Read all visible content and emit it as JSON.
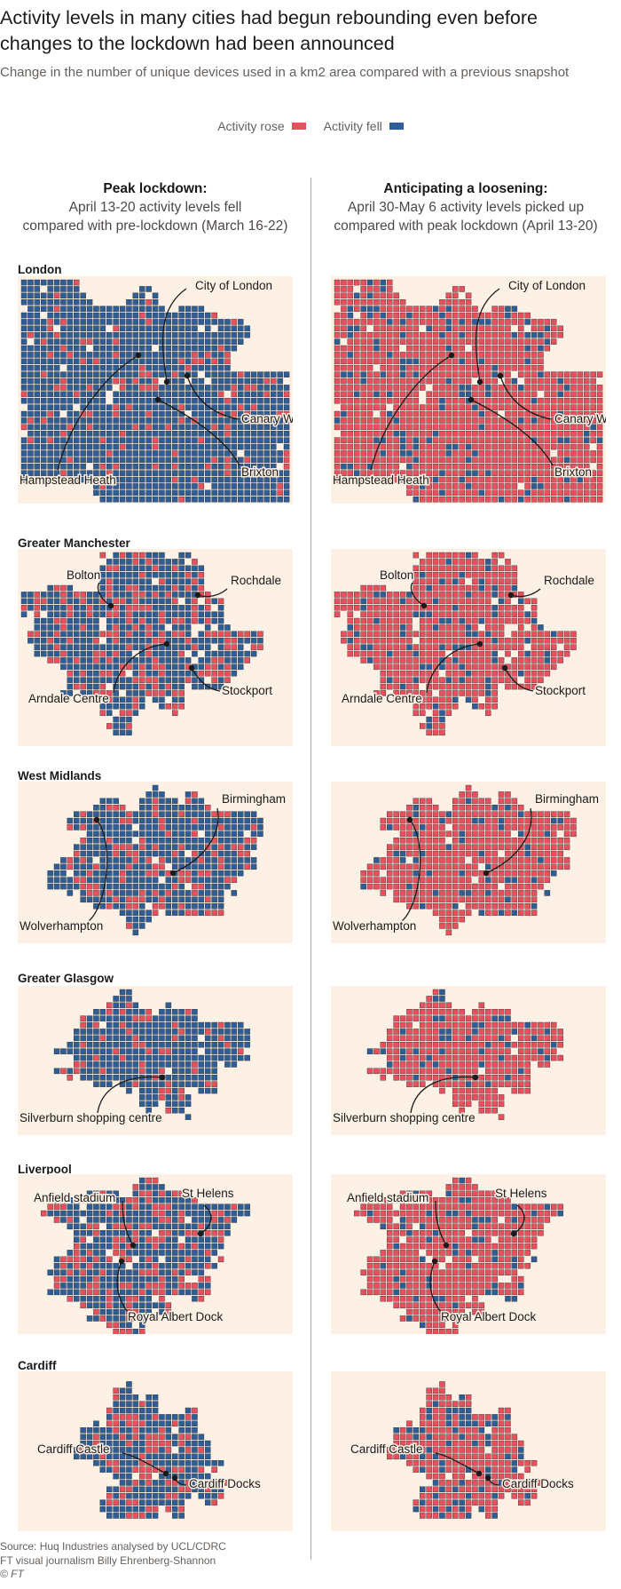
{
  "header": {
    "title": "Activity levels in many cities had begun rebounding even before changes to the lockdown had been announced",
    "subtitle": "Change in the number of unique devices used in a km2 area compared with a previous snapshot"
  },
  "legend": {
    "rose_label": "Activity rose",
    "fell_label": "Activity fell",
    "rose_color": "#e9505d",
    "fell_color": "#2f5d95"
  },
  "columns": [
    {
      "heading": "Peak lockdown:",
      "line1": "April 13-20 activity levels fell",
      "line2": "compared with pre-lockdown (March 16-22)"
    },
    {
      "heading": "Anticipating a loosening:",
      "line1": "April 30-May 6 activity levels picked up",
      "line2": "compared with peak lockdown (April 13-20)"
    }
  ],
  "cities": [
    {
      "name": "London",
      "share_rose": [
        0.1,
        0.87
      ],
      "annotations": [
        "City of London",
        "Canary Wharf",
        "Brixton",
        "Hampstead Heath"
      ]
    },
    {
      "name": "Greater Manchester",
      "share_rose": [
        0.32,
        0.85
      ],
      "annotations": [
        "Bolton",
        "Rochdale",
        "Stockport",
        "Arndale Centre"
      ]
    },
    {
      "name": "West Midlands",
      "share_rose": [
        0.22,
        0.86
      ],
      "annotations": [
        "Birmingham",
        "Wolverhampton"
      ]
    },
    {
      "name": "Greater Glasgow",
      "share_rose": [
        0.2,
        0.85
      ],
      "annotations": [
        "Silverburn shopping centre"
      ]
    },
    {
      "name": "Liverpool",
      "share_rose": [
        0.35,
        0.86
      ],
      "annotations": [
        "Anfield stadium",
        "St Helens",
        "Royal Albert Dock"
      ]
    },
    {
      "name": "Cardiff",
      "share_rose": [
        0.28,
        0.78
      ],
      "annotations": [
        "Cardiff Castle",
        "Cardiff Docks"
      ]
    }
  ],
  "footer": {
    "source": "Source: Huq Industries analysed by UCL/CDRC",
    "credit": "FT visual journalism Billy Ehrenberg-Shannon",
    "copyright": "© FT"
  }
}
